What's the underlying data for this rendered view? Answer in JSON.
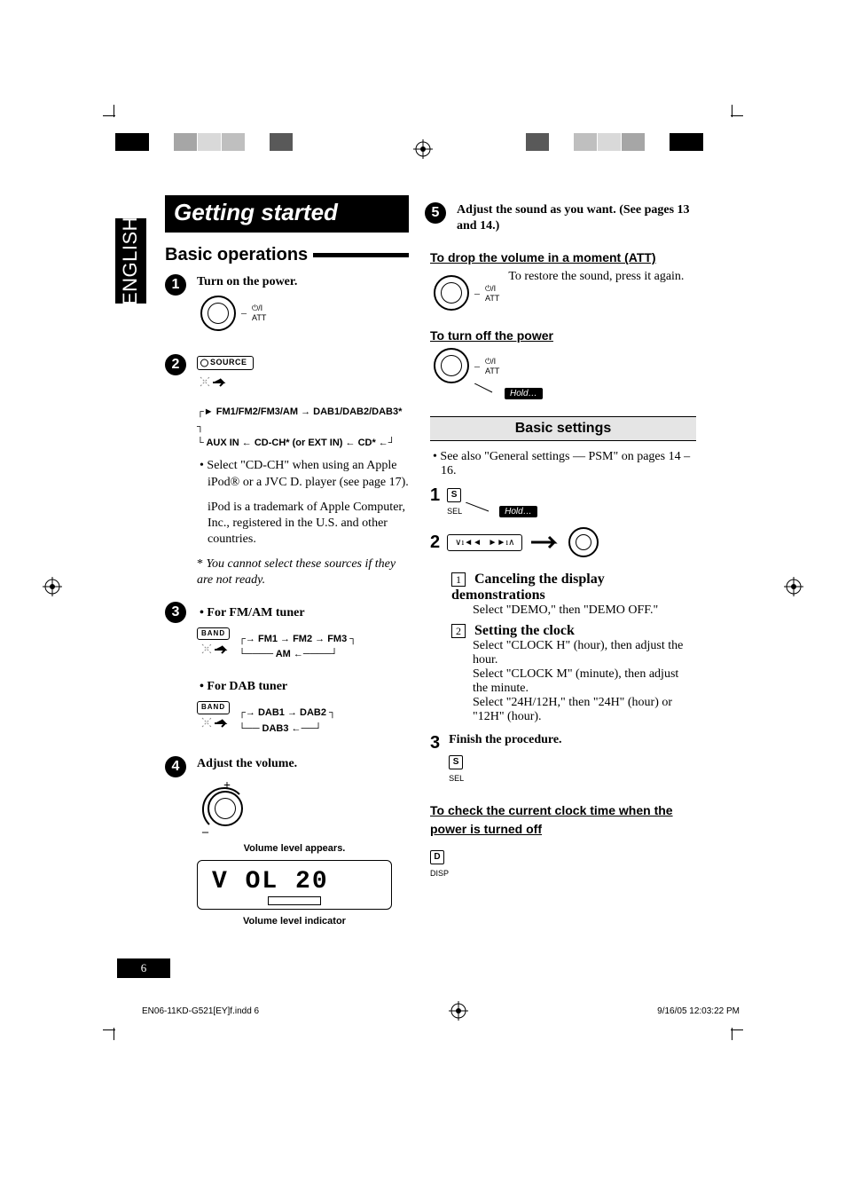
{
  "language": "ENGLISH",
  "title": "Getting started",
  "section1": "Basic operations",
  "registration_colors_left": [
    "#000000",
    "#ffffff",
    "#a6a6a6",
    "#d9d9d9",
    "#bfbfbf",
    "#ffffff",
    "#595959",
    "#ffffff"
  ],
  "registration_colors_right": [
    "#ffffff",
    "#595959",
    "#ffffff",
    "#bfbfbf",
    "#d9d9d9",
    "#a6a6a6",
    "#ffffff",
    "#000000"
  ],
  "registration_widths": [
    38,
    26,
    26,
    26,
    26,
    26,
    26,
    38
  ],
  "steps": {
    "s1": {
      "num": "1",
      "text": "Turn on the power."
    },
    "s2": {
      "num": "2",
      "source_label": "SOURCE",
      "flow_line1": "FM1/FM2/FM3/AM → DAB1/DAB2/DAB3*",
      "flow_line2": "AUX IN ← CD-CH* (or EXT IN) ← CD* ←",
      "bullet": "Select \"CD-CH\" when using an Apple iPod® or a JVC D. player (see page 17).",
      "note": "iPod is a trademark of Apple Computer, Inc., registered in the U.S. and other countries.",
      "footnote": "You cannot select these sources if they are not ready."
    },
    "s3": {
      "num": "3",
      "fm_label": "For FM/AM tuner",
      "band_btn": "BAND",
      "fm_flow1": "FM1 → FM2 → FM3",
      "fm_flow2": "AM ←",
      "dab_label": "For DAB tuner",
      "dab_flow1": "DAB1 → DAB2",
      "dab_flow2": "DAB3 ←"
    },
    "s4": {
      "num": "4",
      "text": "Adjust the volume.",
      "caption1": "Volume level appears.",
      "caption2": "Volume level indicator",
      "vol_text": "V OL    20"
    },
    "s5": {
      "num": "5",
      "text": "Adjust the sound as you want. (See pages 13 and 14.)"
    }
  },
  "right": {
    "att_heading": "To drop the volume in a moment (ATT)",
    "att_text": "To restore the sound, press it again.",
    "power_heading": "To turn off the power",
    "hold": "Hold…",
    "settings_heading": "Basic settings",
    "see_also": "See also \"General settings — PSM\" on pages 14 – 16.",
    "step1_num": "1",
    "step2_num": "2",
    "sel": "S",
    "sel_label": "SEL",
    "disp": "D",
    "disp_label": "DISP",
    "item1_num": "1",
    "item1_title": "Canceling the display demonstrations",
    "item1_body": "Select \"DEMO,\" then \"DEMO OFF.\"",
    "item2_num": "2",
    "item2_title": "Setting the clock",
    "item2_body1": "Select \"CLOCK H\" (hour), then adjust the hour.",
    "item2_body2": "Select \"CLOCK M\" (minute), then adjust the minute.",
    "item2_body3": "Select \"24H/12H,\" then \"24H\" (hour) or \"12H\" (hour).",
    "step3_num": "3",
    "step3_text": "Finish the procedure.",
    "clock_heading": "To check the current clock time when the power is turned off"
  },
  "dial_att": "ATT",
  "page_number": "6",
  "footer_left": "EN06-11KD-G521[EY]f.indd   6",
  "footer_right": "9/16/05   12:03:22 PM"
}
